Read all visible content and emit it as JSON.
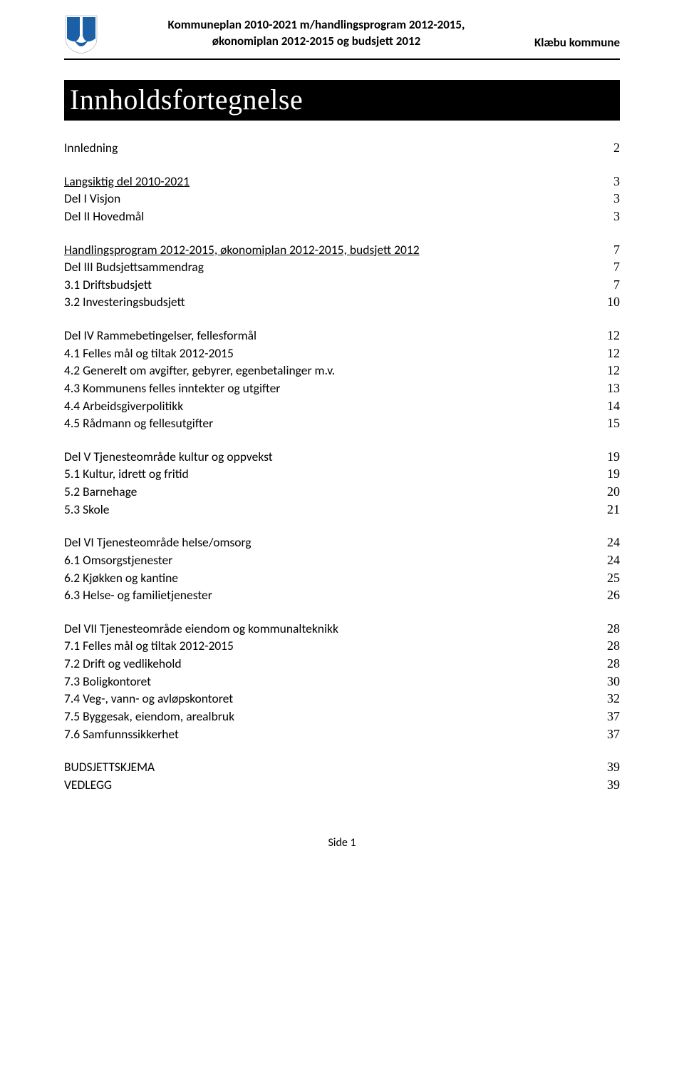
{
  "header": {
    "title_line1": "Kommuneplan 2010-2021 m/handlingsprogram 2012-2015,",
    "title_line2": "økonomiplan 2012-2015 og budsjett 2012",
    "right": "Klæbu kommune"
  },
  "logo": {
    "colors": {
      "blue": "#1b5fa6",
      "white": "#ffffff"
    }
  },
  "title_bar": "Innholdsfortegnelse",
  "toc": [
    {
      "type": "row",
      "label": "Innledning",
      "page": "2",
      "underline": false
    },
    {
      "type": "gap"
    },
    {
      "type": "row",
      "label": "Langsiktig del 2010-2021",
      "page": "3",
      "underline": true
    },
    {
      "type": "row",
      "label": "Del I Visjon",
      "page": "3",
      "underline": false
    },
    {
      "type": "row",
      "label": "Del II Hovedmål",
      "page": "3",
      "underline": false
    },
    {
      "type": "gap"
    },
    {
      "type": "row",
      "label": "Handlingsprogram 2012-2015, økonomiplan 2012-2015, budsjett 2012",
      "page": "7",
      "underline": true
    },
    {
      "type": "row",
      "label": "Del III Budsjettsammendrag",
      "page": "7",
      "underline": false
    },
    {
      "type": "row",
      "label": "3.1 Driftsbudsjett",
      "page": "7",
      "underline": false
    },
    {
      "type": "row",
      "label": "3.2 Investeringsbudsjett",
      "page": "10",
      "underline": false
    },
    {
      "type": "gap"
    },
    {
      "type": "row",
      "label": "Del IV Rammebetingelser, fellesformål",
      "page": "12",
      "underline": false
    },
    {
      "type": "row",
      "label": "4.1 Felles mål og tiltak 2012-2015",
      "page": "12",
      "underline": false
    },
    {
      "type": "row",
      "label": "4.2 Generelt om avgifter, gebyrer, egenbetalinger m.v.",
      "page": "12",
      "underline": false
    },
    {
      "type": "row",
      "label": "4.3 Kommunens felles inntekter og utgifter",
      "page": "13",
      "underline": false
    },
    {
      "type": "row",
      "label": "4.4 Arbeidsgiverpolitikk",
      "page": "14",
      "underline": false
    },
    {
      "type": "row",
      "label": "4.5 Rådmann og fellesutgifter",
      "page": "15",
      "underline": false
    },
    {
      "type": "gap"
    },
    {
      "type": "row",
      "label": "Del V Tjenesteområde kultur og oppvekst",
      "page": "19",
      "underline": false
    },
    {
      "type": "row",
      "label": "5.1 Kultur, idrett og fritid",
      "page": "19",
      "underline": false
    },
    {
      "type": "row",
      "label": "5.2 Barnehage",
      "page": "20",
      "underline": false
    },
    {
      "type": "row",
      "label": "5.3 Skole",
      "page": "21",
      "underline": false
    },
    {
      "type": "gap"
    },
    {
      "type": "row",
      "label": "Del VI Tjenesteområde helse/omsorg",
      "page": "24",
      "underline": false
    },
    {
      "type": "row",
      "label": "6.1 Omsorgstjenester",
      "page": "24",
      "underline": false
    },
    {
      "type": "row",
      "label": "6.2 Kjøkken og kantine",
      "page": "25",
      "underline": false
    },
    {
      "type": "row",
      "label": "6.3 Helse- og familietjenester",
      "page": "26",
      "underline": false
    },
    {
      "type": "gap"
    },
    {
      "type": "row",
      "label": "Del VII Tjenesteområde eiendom og kommunalteknikk",
      "page": "28",
      "underline": false
    },
    {
      "type": "row",
      "label": "7.1 Felles mål og tiltak 2012-2015",
      "page": "28",
      "underline": false
    },
    {
      "type": "row",
      "label": "7.2 Drift og vedlikehold",
      "page": "28",
      "underline": false
    },
    {
      "type": "row",
      "label": "7.3 Boligkontoret",
      "page": "30",
      "underline": false
    },
    {
      "type": "row",
      "label": "7.4 Veg-, vann- og avløpskontoret",
      "page": "32",
      "underline": false
    },
    {
      "type": "row",
      "label": "7.5 Byggesak, eiendom, arealbruk",
      "page": "37",
      "underline": false
    },
    {
      "type": "row",
      "label": "7.6 Samfunnssikkerhet",
      "page": "37",
      "underline": false
    },
    {
      "type": "gap"
    },
    {
      "type": "row",
      "label": "BUDSJETTSKJEMA",
      "page": "39",
      "underline": false
    },
    {
      "type": "row",
      "label": "VEDLEGG",
      "page": "39",
      "underline": false
    }
  ],
  "footer": "Side 1"
}
